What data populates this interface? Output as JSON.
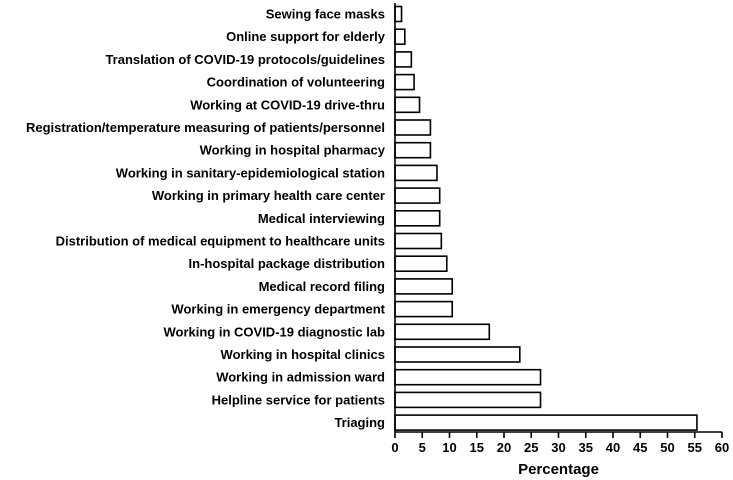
{
  "chart_data": {
    "type": "bar",
    "orientation": "horizontal",
    "categories": [
      "Sewing face masks",
      "Online support for elderly",
      "Translation of COVID-19 protocols/guidelines",
      "Coordination of volunteering",
      "Working at COVID-19 drive-thru",
      "Registration/temperature measuring of patients/personnel",
      "Working in hospital pharmacy",
      "Working in sanitary-epidemiological station",
      "Working in primary health care center",
      "Medical interviewing",
      "Distribution of medical equipment to healthcare units",
      "In-hospital package distribution",
      "Medical record filing",
      "Working in emergency department",
      "Working in COVID-19 diagnostic lab",
      "Working in hospital clinics",
      "Working in admission ward",
      "Helpline service for patients",
      "Triaging"
    ],
    "values": [
      1.2,
      1.8,
      3.0,
      3.5,
      4.5,
      6.5,
      6.5,
      7.7,
      8.2,
      8.2,
      8.5,
      9.5,
      10.5,
      10.5,
      17.3,
      22.9,
      26.7,
      26.7,
      55.4
    ],
    "title": "",
    "xlabel": "Percentage",
    "ylabel": "",
    "xlim": [
      0,
      60
    ],
    "xticks": [
      "0",
      "5",
      "10",
      "15",
      "20",
      "25",
      "30",
      "35",
      "40",
      "45",
      "50",
      "55",
      "60"
    ],
    "grid": false,
    "legend": "none",
    "colors": {
      "bar_fill": "#ffffff",
      "bar_stroke": "#000000",
      "text": "#000000"
    }
  }
}
